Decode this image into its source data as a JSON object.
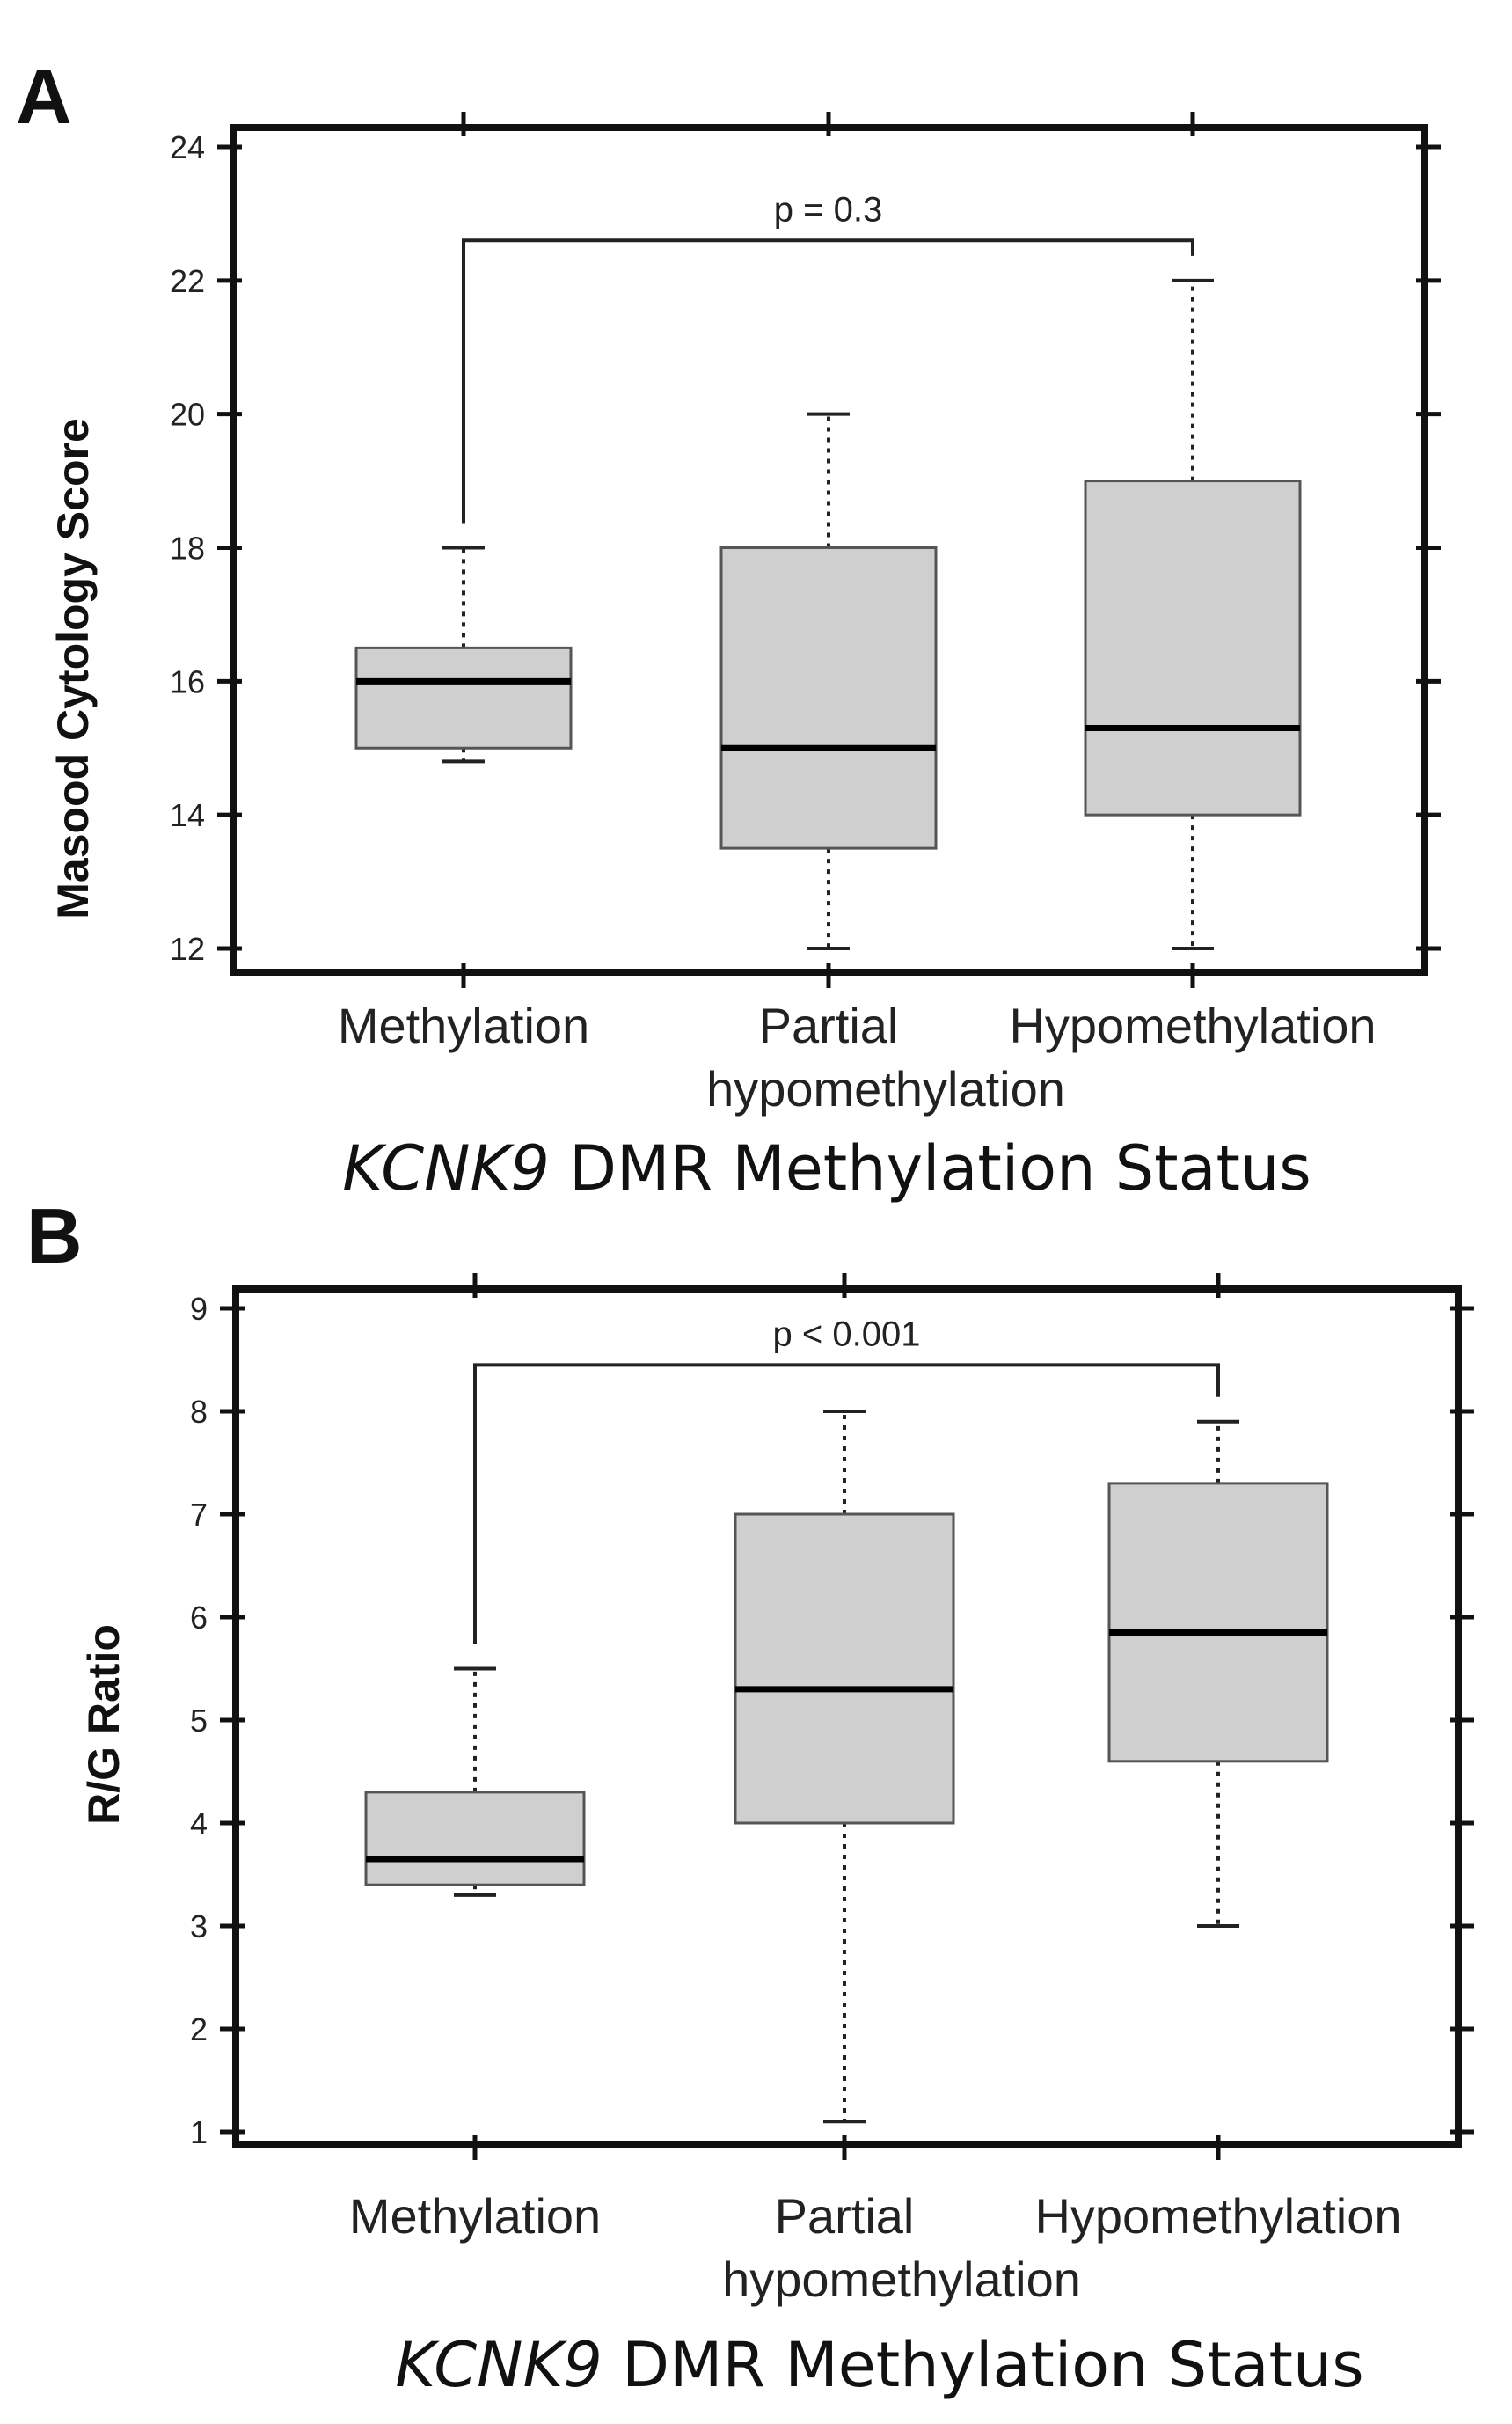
{
  "chart_data": [
    {
      "panel": "A",
      "type": "box",
      "ylabel": "Masood Cytology Score",
      "xlabel_italic": "KCNK9",
      "xlabel_rest": " DMR Methylation Status",
      "ylim": [
        12,
        24
      ],
      "yticks": [
        12,
        14,
        16,
        18,
        20,
        22,
        24
      ],
      "categories": [
        [
          "Methylation"
        ],
        [
          "Partial",
          "hypomethylation"
        ],
        [
          "Hypomethylation"
        ]
      ],
      "boxes": [
        {
          "min": 14.8,
          "q1": 15.0,
          "median": 16.0,
          "q3": 16.5,
          "max": 18.0
        },
        {
          "min": 12.0,
          "q1": 13.5,
          "median": 15.0,
          "q3": 18.0,
          "max": 20.0
        },
        {
          "min": 12.0,
          "q1": 14.0,
          "median": 15.3,
          "q3": 19.0,
          "max": 22.0
        }
      ],
      "comparison": {
        "from": 0,
        "to": 2,
        "label": "p = 0.3",
        "level": 22.6
      }
    },
    {
      "panel": "B",
      "type": "box",
      "ylabel": "R/G Ratio",
      "xlabel_italic": "KCNK9",
      "xlabel_rest": " DMR Methylation Status",
      "ylim": [
        1,
        9
      ],
      "yticks": [
        1,
        2,
        3,
        4,
        5,
        6,
        7,
        8,
        9
      ],
      "categories": [
        [
          "Methylation"
        ],
        [
          "Partial",
          "hypomethylation"
        ],
        [
          "Hypomethylation"
        ]
      ],
      "boxes": [
        {
          "min": 3.3,
          "q1": 3.4,
          "median": 3.65,
          "q3": 4.3,
          "max": 5.5
        },
        {
          "min": 1.1,
          "q1": 4.0,
          "median": 5.3,
          "q3": 7.0,
          "max": 8.0
        },
        {
          "min": 3.0,
          "q1": 4.6,
          "median": 5.85,
          "q3": 7.3,
          "max": 7.9
        }
      ],
      "comparison": {
        "from": 0,
        "to": 2,
        "label": "p < 0.001",
        "level": 8.45
      }
    }
  ],
  "style": {
    "box_fill": "#cfcfcf",
    "box_stroke": "#555555",
    "frame": "#111111"
  }
}
